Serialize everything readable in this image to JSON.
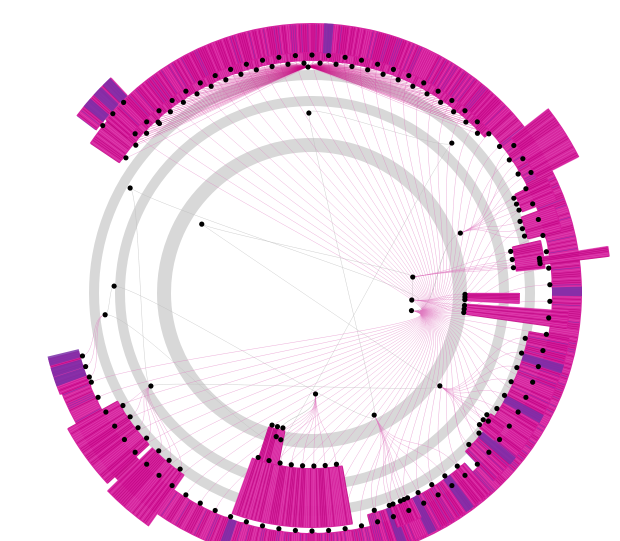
{
  "diagram": {
    "type": "radial-tree",
    "palette": {
      "ring": "#d8d8d8",
      "edge": "#c8007e",
      "edge_light": "#e07ac0",
      "fill_magenta": "#d4199a",
      "fill_violet": "#7a2fa8",
      "node": "#000000"
    },
    "rings": [
      {
        "name": "inner-ring"
      },
      {
        "name": "middle-ring"
      },
      {
        "name": "outer-ring"
      }
    ],
    "sectors": [
      {
        "name": "top-arc",
        "a0": -146,
        "a1": -42,
        "r0": 232,
        "r1": 268,
        "violet": false
      },
      {
        "name": "top-left-block",
        "a0": -143,
        "a1": -133,
        "r0": 270,
        "r1": 295,
        "violet": true
      },
      {
        "name": "left-arc",
        "a0": -140,
        "a1": 160,
        "r0": 240,
        "r1": 270,
        "violet": true,
        "wrap": true
      },
      {
        "name": "left-lower-block",
        "a0": 158,
        "a1": 166,
        "r0": 240,
        "r1": 272,
        "violet": true
      },
      {
        "name": "bottom-left-block",
        "a0": 137,
        "a1": 151,
        "r0": 222,
        "r1": 280,
        "violet": false
      },
      {
        "name": "bottom-left-tail",
        "a0": 125,
        "a1": 136,
        "r0": 222,
        "r1": 285,
        "violet": false
      },
      {
        "name": "bottom-center",
        "a0": 80,
        "a1": 110,
        "r0": 175,
        "r1": 235,
        "violet": false
      },
      {
        "name": "bottom-center-top",
        "a0": 101,
        "a1": 108,
        "r0": 140,
        "r1": 176,
        "violet": false
      },
      {
        "name": "bottom-right",
        "a0": 48,
        "a1": 76,
        "r0": 228,
        "r1": 268,
        "violet": true
      },
      {
        "name": "bottom-right-mini",
        "a0": 64,
        "a1": 70,
        "r0": 228,
        "r1": 250,
        "violet": false
      },
      {
        "name": "right-lower",
        "a0": 10,
        "a1": 46,
        "r0": 220,
        "r1": 262,
        "violet": true
      },
      {
        "name": "right-lower-mini",
        "a0": 34,
        "a1": 39,
        "r0": 215,
        "r1": 235,
        "violet": false
      },
      {
        "name": "right-bar-1",
        "a0": 4,
        "a1": 8,
        "r0": 155,
        "r1": 258,
        "violet": false
      },
      {
        "name": "right-bar-2",
        "a0": 0,
        "a1": 3,
        "r0": 155,
        "r1": 208,
        "violet": false
      },
      {
        "name": "right-mid",
        "a0": -13,
        "a1": -6,
        "r0": 205,
        "r1": 235,
        "violet": false
      },
      {
        "name": "right-mid-bar",
        "a0": -9,
        "a1": -7,
        "r0": 232,
        "r1": 300,
        "violet": false
      },
      {
        "name": "right-upper",
        "a0": -20,
        "a1": -14,
        "r0": 222,
        "r1": 258,
        "violet": false
      },
      {
        "name": "right-upper-2",
        "a0": -26,
        "a1": -21,
        "r0": 225,
        "r1": 262,
        "violet": false
      },
      {
        "name": "right-top-block",
        "a0": -38,
        "a1": -27,
        "r0": 252,
        "r1": 300,
        "violet": false
      }
    ]
  }
}
